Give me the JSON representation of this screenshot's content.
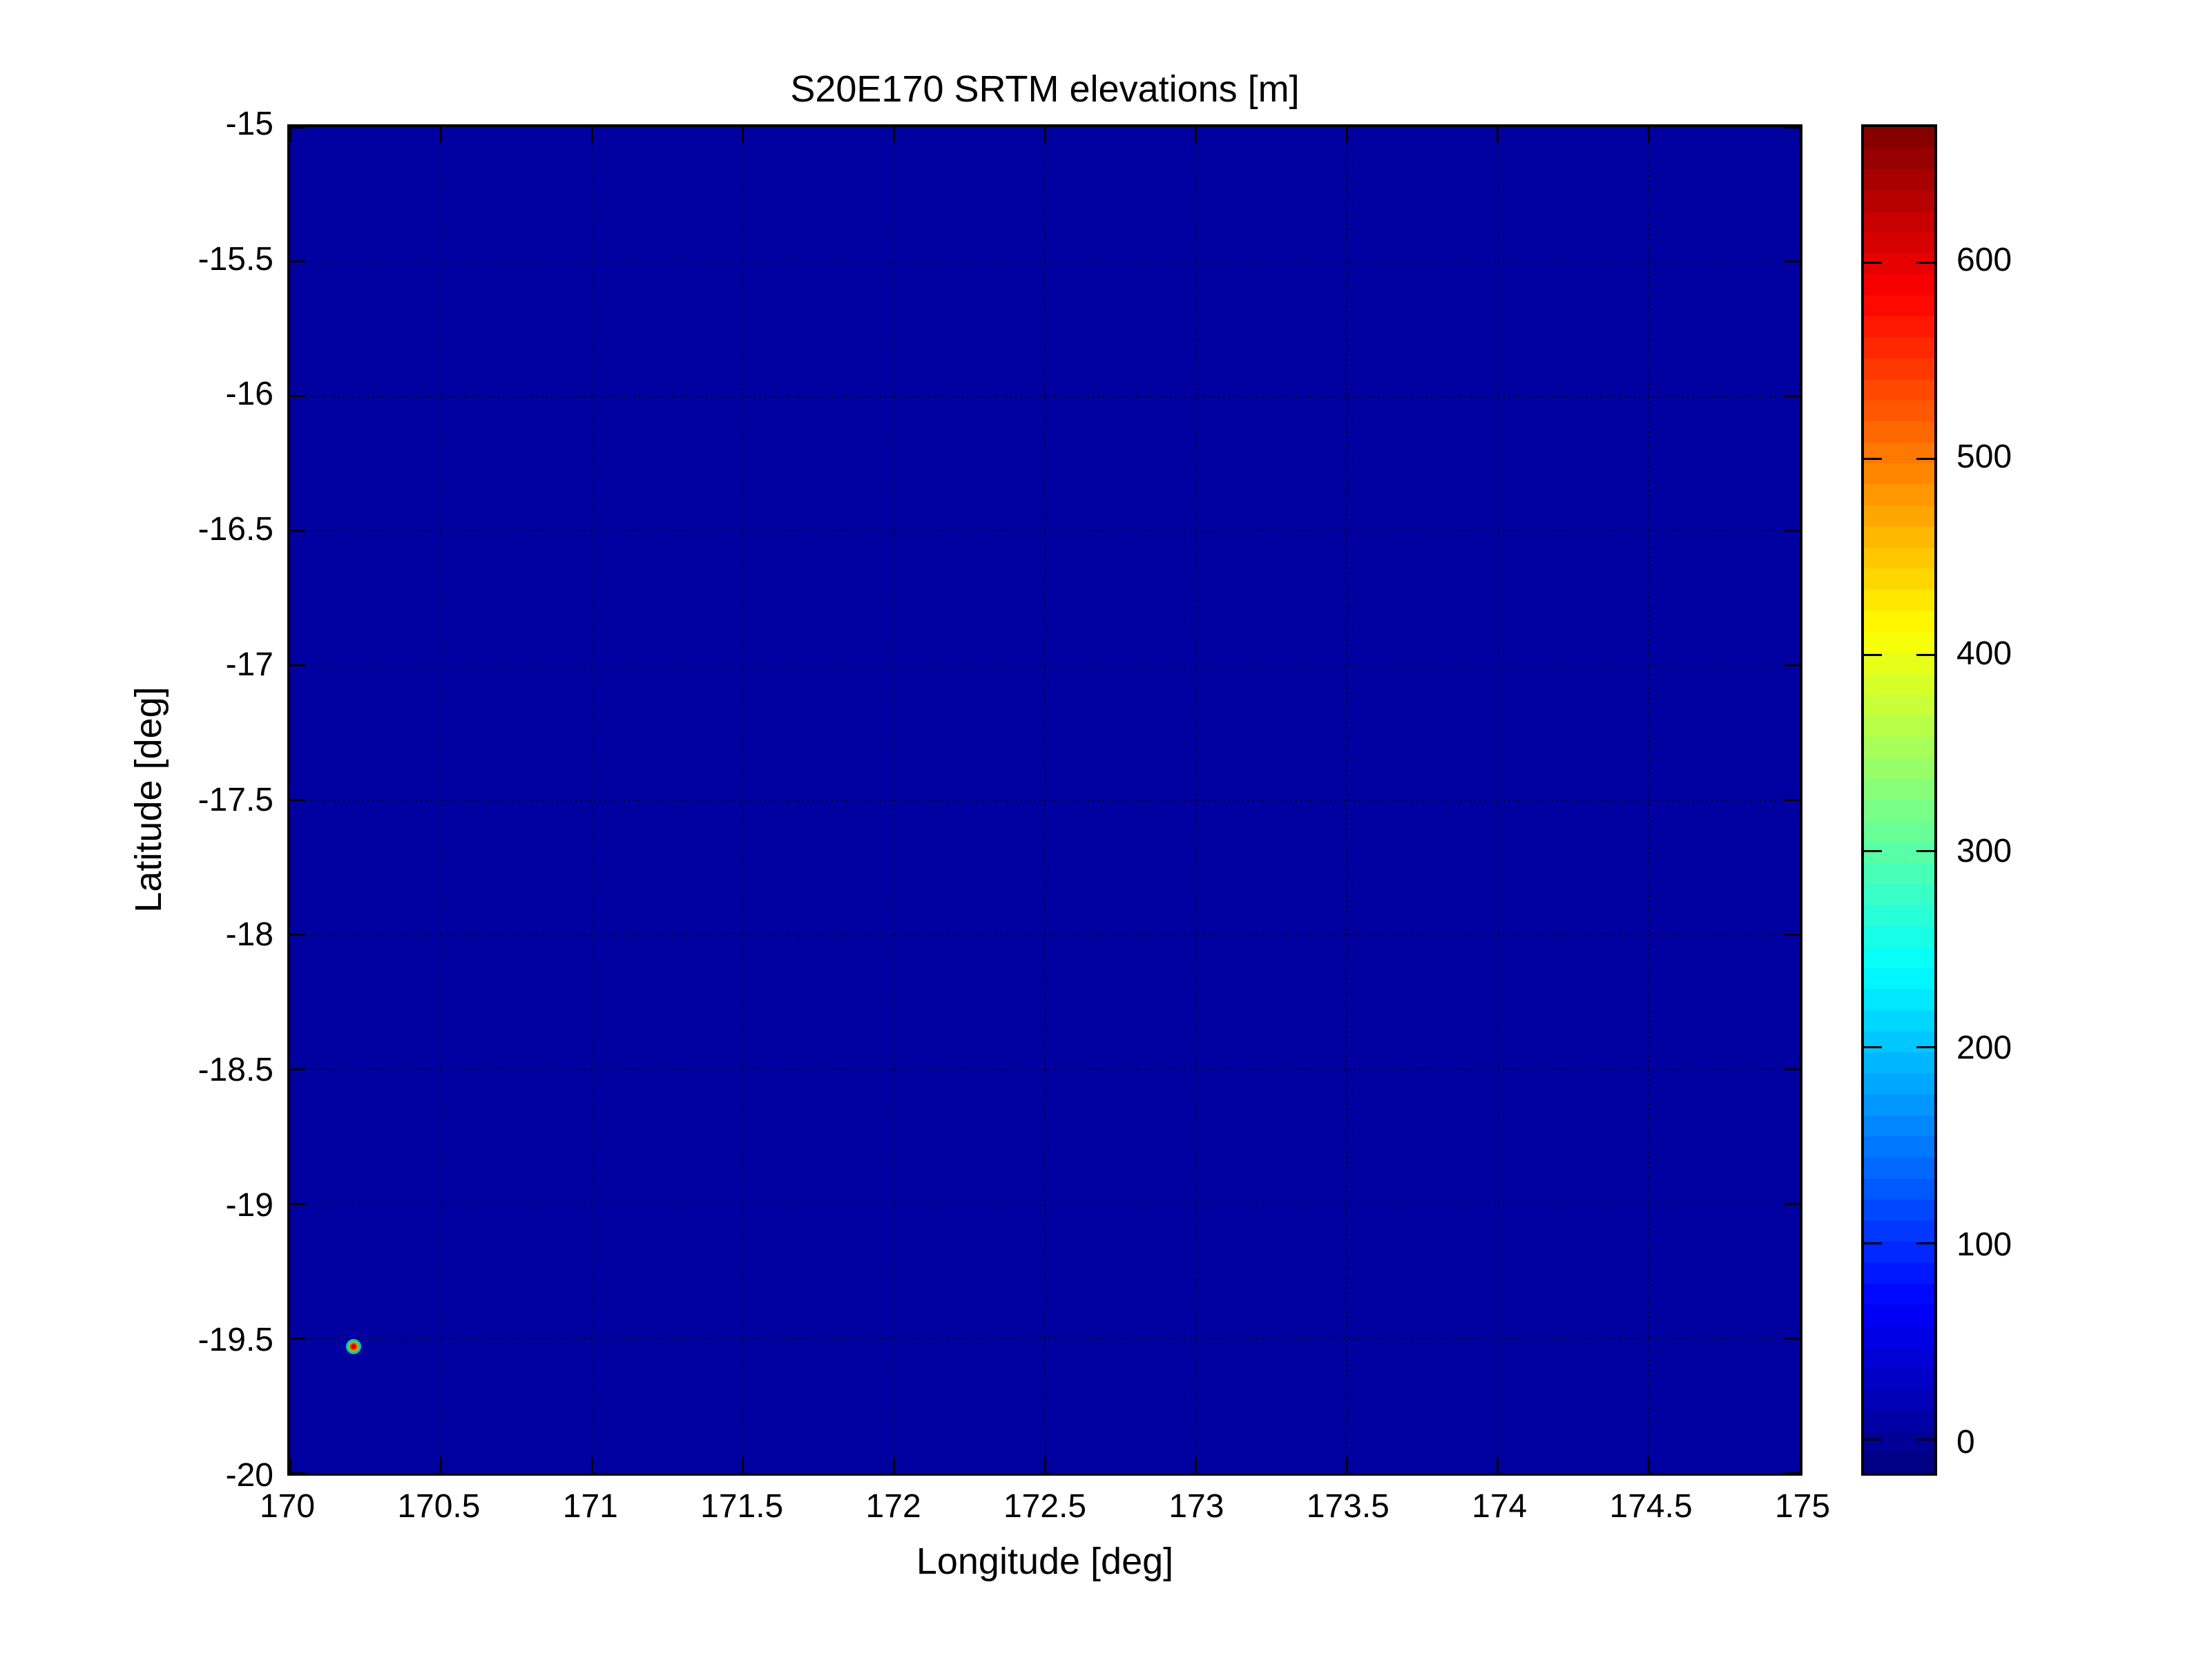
{
  "figure": {
    "background_color": "#ffffff"
  },
  "chart_data": {
    "type": "heatmap",
    "title": "S20E170 SRTM elevations [m]",
    "xlabel": "Longitude [deg]",
    "ylabel": "Latitude [deg]",
    "xlim": [
      170,
      175
    ],
    "ylim": [
      -20,
      -15
    ],
    "x_ticks": [
      170,
      170.5,
      171,
      171.5,
      172,
      172.5,
      173,
      173.5,
      174,
      174.5,
      175
    ],
    "y_ticks": [
      -15,
      -15.5,
      -16,
      -16.5,
      -17,
      -17.5,
      -18,
      -18.5,
      -19,
      -19.5,
      -20
    ],
    "grid": true,
    "grid_style": "dotted",
    "ocean_value_m": 0,
    "ocean_color": "#0000A0",
    "colorbar": {
      "colormap": "jet",
      "levels": 64,
      "range": [
        -17,
        669
      ],
      "ticks": [
        0,
        100,
        200,
        300,
        400,
        500,
        600
      ],
      "top_color": "#800000",
      "bottom_color": "#000080"
    },
    "features": [
      {
        "name": "island-peak",
        "lon": 170.21,
        "lat": -19.53,
        "value_m": 666,
        "core_color": "#990000",
        "halo_colors": [
          "#990000",
          "#dd2200",
          "#ff6600",
          "#aacc00",
          "#00cc88",
          "#00cce0",
          "#0077ee",
          "#0000a0"
        ],
        "halo_stops_pct": [
          0,
          24,
          34,
          44,
          54,
          66,
          80,
          100
        ]
      }
    ]
  }
}
